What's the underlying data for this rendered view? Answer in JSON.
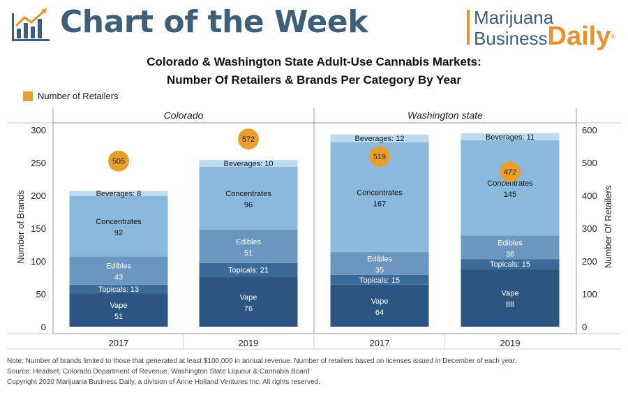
{
  "header": {
    "title": "Chart of the Week",
    "brand_line1": "Marijuana",
    "brand_business": "Business",
    "brand_daily": "Daily",
    "brand_reg": "®"
  },
  "colors": {
    "vape": "#2c5582",
    "topicals": "#3c6a98",
    "edibles": "#6a96bf",
    "concentrates": "#8bb8dd",
    "beverages": "#bcdaf0",
    "retailers": "#e8a02c",
    "title_blue": "#3f5f78"
  },
  "chart_data": {
    "type": "bar",
    "stacked": true,
    "title_line1": "Colorado & Washington State Adult-Use Cannabis Markets:",
    "title_line2": "Number Of Retailers & Brands Per Category By Year",
    "legend": "Number of Retailers",
    "legend_placement": "top-left",
    "panels": [
      "Colorado",
      "Washington state"
    ],
    "categories": [
      "2017",
      "2019",
      "2017",
      "2019"
    ],
    "ylabel": "Number of Brands",
    "ylabel_right": "Number Of Retailers",
    "ylim": [
      0,
      300
    ],
    "ylim_right": [
      0,
      600
    ],
    "yticks": [
      0,
      50,
      100,
      150,
      200,
      250,
      300
    ],
    "yticks_right": [
      0,
      100,
      200,
      300,
      400,
      500,
      600
    ],
    "series": [
      {
        "name": "Vape",
        "values": [
          51,
          76,
          64,
          88
        ]
      },
      {
        "name": "Topicals",
        "values": [
          13,
          21,
          15,
          15
        ]
      },
      {
        "name": "Edibles",
        "values": [
          43,
          51,
          35,
          36
        ]
      },
      {
        "name": "Concentrates",
        "values": [
          92,
          96,
          167,
          145
        ]
      },
      {
        "name": "Beverages",
        "values": [
          8,
          10,
          12,
          11
        ]
      }
    ],
    "retailers": {
      "name": "Number of Retailers",
      "values": [
        505,
        572,
        519,
        472
      ]
    }
  },
  "footer": {
    "note": "Note: Number of brands limited to those that generated at least $100,000 in annual revenue. Number of retailers based on licenses issued in December of each year.",
    "source": "Source: Headset, Colorado Department of Revenue, Washington State Liquour & Cannabis Board",
    "copyright": "Copyright 2020 Marijuana Business Daily, a division of Anne Holland Ventures Inc. All rights reserved."
  }
}
